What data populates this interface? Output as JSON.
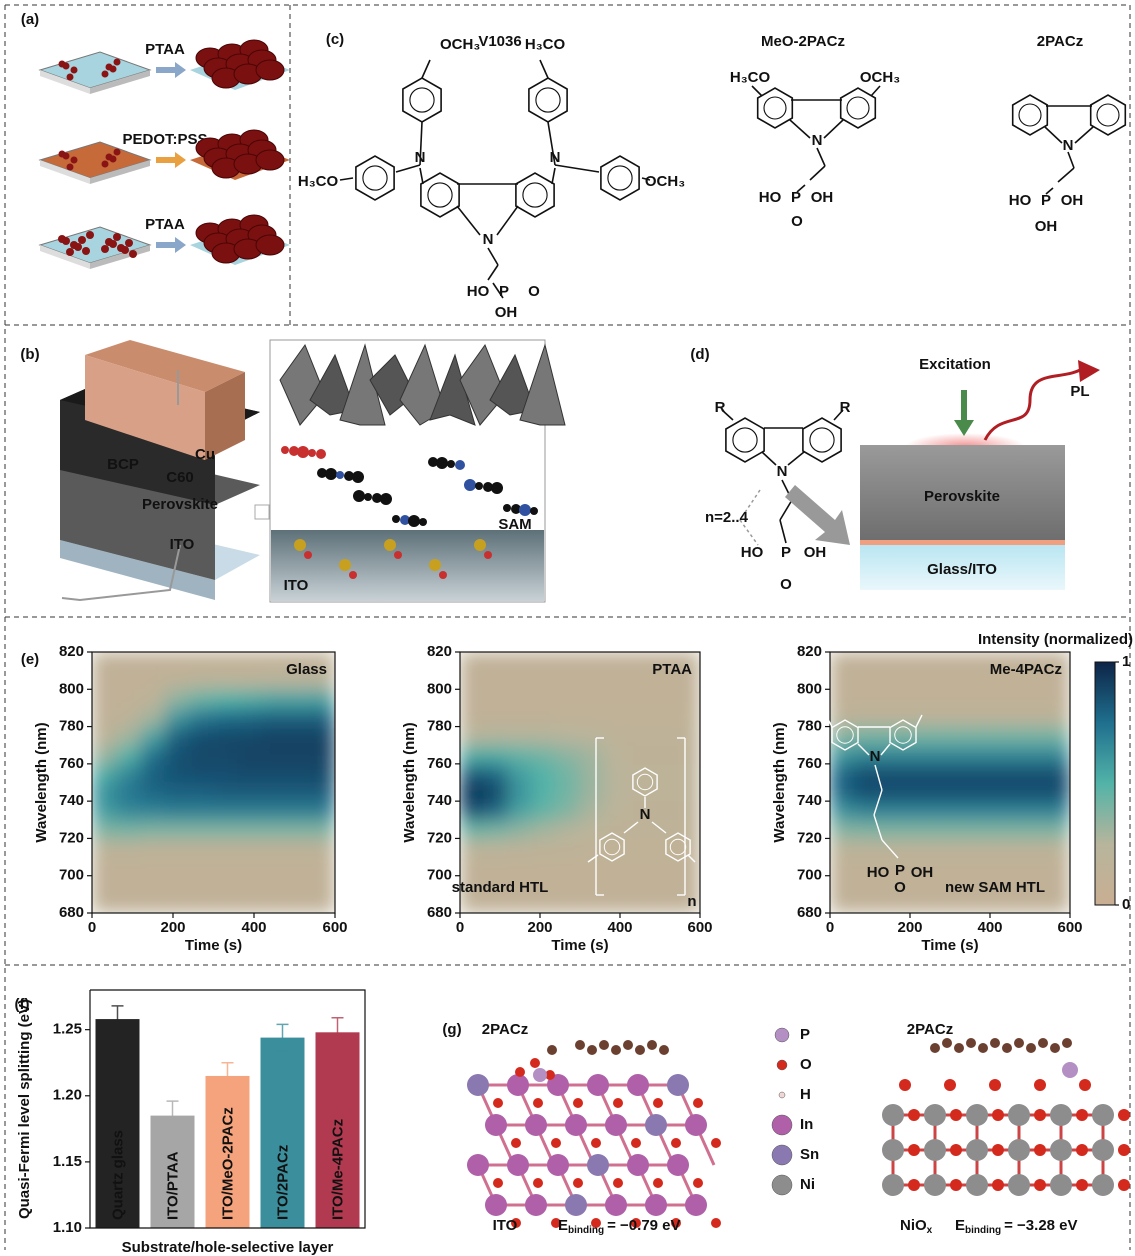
{
  "panels": {
    "a": {
      "label": "(a)",
      "steps": [
        "PTAA",
        "PEDOT:PSS",
        "PTAA"
      ]
    },
    "b": {
      "label": "(b)",
      "device": [
        "Cu",
        "BCP",
        "C60",
        "Perovskite",
        "ITO"
      ],
      "inset": [
        "SAM",
        "ITO"
      ]
    },
    "c": {
      "label": "(c)",
      "molecules": [
        {
          "name": "V1036",
          "atoms": [
            "OCH₃",
            "H₃CO",
            "H₃CO",
            "OCH₃",
            "N",
            "N",
            "N",
            "HO",
            "P",
            "O",
            "OH"
          ]
        },
        {
          "name": "MeO-2PACz",
          "atoms": [
            "H₃CO",
            "OCH₃",
            "N",
            "HO",
            "P",
            "OH",
            "O"
          ]
        },
        {
          "name": "2PACz",
          "atoms": [
            "N",
            "HO",
            "P",
            "OH",
            "OH"
          ]
        }
      ]
    },
    "d": {
      "label": "(d)",
      "atoms": [
        "R",
        "R",
        "N",
        "HO",
        "P",
        "OH",
        "O"
      ],
      "chain": "n=2..4",
      "excitation": "Excitation",
      "emission": "PL",
      "layers": [
        "Perovskite",
        "Glass/ITO"
      ]
    },
    "e": {
      "label": "(e)"
    },
    "f": {
      "label": "(f)"
    },
    "g": {
      "label": "(g)",
      "structures": [
        {
          "molecule": "2PACz",
          "substrate": "ITO",
          "energy_symbol": "E",
          "energy_sub": "binding",
          "energy_value": "= −0.79 eV"
        },
        {
          "molecule": "2PACz",
          "substrate": "NiO",
          "substrate_sub": "x",
          "energy_symbol": "E",
          "energy_sub": "binding",
          "energy_value": "= −3.28 eV"
        }
      ],
      "legend": [
        {
          "name": "P",
          "color": "#b48fc4"
        },
        {
          "name": "O",
          "color": "#d42a1e"
        },
        {
          "name": "H",
          "color": "#f2d6d6"
        },
        {
          "name": "In",
          "color": "#b060a8"
        },
        {
          "name": "Sn",
          "color": "#8a78b0"
        },
        {
          "name": "Ni",
          "color": "#8d8d8d"
        }
      ]
    }
  },
  "chart_data": [
    {
      "type": "heatmap",
      "title": "Glass",
      "xlabel": "Time (s)",
      "ylabel": "Wavelength (nm)",
      "xlim": [
        0,
        600
      ],
      "ylim": [
        680,
        820
      ],
      "xticks": [
        0,
        200,
        400,
        600
      ],
      "yticks": [
        680,
        700,
        720,
        740,
        760,
        780,
        800,
        820
      ],
      "x_bins": [
        0,
        60,
        120,
        180,
        240,
        300,
        360,
        420,
        480,
        540,
        600
      ],
      "y_bins": [
        680,
        690,
        700,
        710,
        720,
        730,
        740,
        750,
        760,
        770,
        780,
        790,
        800,
        810,
        820
      ],
      "colorscale": [
        "#c9ae92",
        "#b7b59c",
        "#52b3a8",
        "#1f6f8e",
        "#0d2447"
      ],
      "values": [
        [
          0.12,
          0.12,
          0.12,
          0.18,
          0.4,
          0.58,
          0.62,
          0.52,
          0.32,
          0.16,
          0.12,
          0.12,
          0.12,
          0.12
        ],
        [
          0.12,
          0.12,
          0.12,
          0.18,
          0.42,
          0.66,
          0.72,
          0.66,
          0.5,
          0.3,
          0.15,
          0.12,
          0.12,
          0.12
        ],
        [
          0.12,
          0.12,
          0.12,
          0.16,
          0.4,
          0.68,
          0.78,
          0.8,
          0.74,
          0.55,
          0.3,
          0.15,
          0.12,
          0.12
        ],
        [
          0.12,
          0.12,
          0.12,
          0.16,
          0.4,
          0.7,
          0.8,
          0.85,
          0.85,
          0.8,
          0.6,
          0.35,
          0.15,
          0.12
        ],
        [
          0.12,
          0.12,
          0.12,
          0.16,
          0.4,
          0.7,
          0.8,
          0.86,
          0.88,
          0.86,
          0.72,
          0.45,
          0.18,
          0.12
        ],
        [
          0.12,
          0.12,
          0.12,
          0.16,
          0.4,
          0.7,
          0.82,
          0.86,
          0.88,
          0.88,
          0.76,
          0.5,
          0.2,
          0.12
        ],
        [
          0.12,
          0.12,
          0.12,
          0.16,
          0.4,
          0.7,
          0.82,
          0.87,
          0.9,
          0.88,
          0.78,
          0.52,
          0.2,
          0.12
        ],
        [
          0.12,
          0.12,
          0.12,
          0.16,
          0.4,
          0.7,
          0.82,
          0.87,
          0.9,
          0.9,
          0.8,
          0.55,
          0.22,
          0.12
        ],
        [
          0.12,
          0.12,
          0.12,
          0.16,
          0.4,
          0.7,
          0.82,
          0.87,
          0.9,
          0.9,
          0.8,
          0.55,
          0.22,
          0.12
        ],
        [
          0.12,
          0.12,
          0.12,
          0.16,
          0.4,
          0.7,
          0.82,
          0.88,
          0.9,
          0.9,
          0.8,
          0.56,
          0.22,
          0.12
        ]
      ]
    },
    {
      "type": "heatmap",
      "title": "PTAA",
      "xlabel": "Time (s)",
      "ylabel": "Wavelength (nm)",
      "xlim": [
        0,
        600
      ],
      "ylim": [
        680,
        820
      ],
      "xticks": [
        0,
        200,
        400,
        600
      ],
      "yticks": [
        680,
        700,
        720,
        740,
        760,
        780,
        800,
        820
      ],
      "x_bins": [
        0,
        60,
        120,
        180,
        240,
        300,
        360,
        420,
        480,
        540,
        600
      ],
      "y_bins": [
        680,
        690,
        700,
        710,
        720,
        730,
        740,
        750,
        760,
        770,
        780,
        790,
        800,
        810,
        820
      ],
      "colorscale": [
        "#c9ae92",
        "#b7b59c",
        "#52b3a8",
        "#1f6f8e",
        "#0d2447"
      ],
      "inset_texts": [
        "N",
        "standard HTL",
        "n"
      ],
      "values": [
        [
          0.12,
          0.12,
          0.12,
          0.2,
          0.45,
          0.85,
          0.95,
          0.82,
          0.52,
          0.25,
          0.12,
          0.12,
          0.12,
          0.12
        ],
        [
          0.12,
          0.12,
          0.12,
          0.2,
          0.42,
          0.78,
          0.88,
          0.78,
          0.52,
          0.26,
          0.12,
          0.12,
          0.12,
          0.12
        ],
        [
          0.12,
          0.12,
          0.12,
          0.18,
          0.36,
          0.56,
          0.62,
          0.58,
          0.46,
          0.26,
          0.12,
          0.12,
          0.12,
          0.12
        ],
        [
          0.12,
          0.12,
          0.12,
          0.16,
          0.3,
          0.46,
          0.5,
          0.5,
          0.42,
          0.26,
          0.12,
          0.12,
          0.12,
          0.12
        ],
        [
          0.12,
          0.12,
          0.12,
          0.15,
          0.26,
          0.38,
          0.42,
          0.42,
          0.36,
          0.24,
          0.13,
          0.12,
          0.12,
          0.12
        ],
        [
          0.12,
          0.12,
          0.12,
          0.14,
          0.2,
          0.28,
          0.32,
          0.32,
          0.3,
          0.22,
          0.13,
          0.12,
          0.12,
          0.12
        ],
        [
          0.12,
          0.12,
          0.12,
          0.13,
          0.16,
          0.2,
          0.22,
          0.22,
          0.2,
          0.17,
          0.13,
          0.12,
          0.12,
          0.12
        ],
        [
          0.12,
          0.12,
          0.12,
          0.13,
          0.15,
          0.16,
          0.17,
          0.17,
          0.16,
          0.15,
          0.13,
          0.12,
          0.12,
          0.12
        ],
        [
          0.12,
          0.12,
          0.12,
          0.13,
          0.15,
          0.16,
          0.17,
          0.17,
          0.16,
          0.15,
          0.13,
          0.12,
          0.12,
          0.12
        ],
        [
          0.12,
          0.12,
          0.12,
          0.13,
          0.15,
          0.16,
          0.17,
          0.17,
          0.16,
          0.15,
          0.13,
          0.12,
          0.12,
          0.12
        ]
      ]
    },
    {
      "type": "heatmap",
      "title": "Me-4PACz",
      "xlabel": "Time (s)",
      "ylabel": "Wavelength (nm)",
      "xlim": [
        0,
        600
      ],
      "ylim": [
        680,
        820
      ],
      "xticks": [
        0,
        200,
        400,
        600
      ],
      "yticks": [
        680,
        700,
        720,
        740,
        760,
        780,
        800,
        820
      ],
      "x_bins": [
        0,
        60,
        120,
        180,
        240,
        300,
        360,
        420,
        480,
        540,
        600
      ],
      "y_bins": [
        680,
        690,
        700,
        710,
        720,
        730,
        740,
        750,
        760,
        770,
        780,
        790,
        800,
        810,
        820
      ],
      "colorscale": [
        "#c9ae92",
        "#b7b59c",
        "#52b3a8",
        "#1f6f8e",
        "#0d2447"
      ],
      "inset_texts": [
        "N",
        "HO",
        "P",
        "OH",
        "O",
        "new SAM HTL"
      ],
      "colorbar": {
        "label": "Intensity (normalized)",
        "ticks": [
          0,
          1
        ]
      },
      "values": [
        [
          0.12,
          0.12,
          0.12,
          0.18,
          0.38,
          0.62,
          0.78,
          0.78,
          0.6,
          0.38,
          0.16,
          0.12,
          0.12,
          0.12
        ],
        [
          0.12,
          0.12,
          0.12,
          0.18,
          0.4,
          0.68,
          0.86,
          0.86,
          0.66,
          0.42,
          0.18,
          0.12,
          0.12,
          0.12
        ],
        [
          0.12,
          0.12,
          0.12,
          0.18,
          0.4,
          0.68,
          0.86,
          0.86,
          0.66,
          0.42,
          0.18,
          0.12,
          0.12,
          0.12
        ],
        [
          0.12,
          0.12,
          0.12,
          0.18,
          0.4,
          0.68,
          0.86,
          0.86,
          0.66,
          0.42,
          0.18,
          0.12,
          0.12,
          0.12
        ],
        [
          0.12,
          0.12,
          0.12,
          0.18,
          0.4,
          0.68,
          0.86,
          0.86,
          0.66,
          0.42,
          0.18,
          0.12,
          0.12,
          0.12
        ],
        [
          0.12,
          0.12,
          0.12,
          0.18,
          0.4,
          0.68,
          0.86,
          0.86,
          0.66,
          0.42,
          0.18,
          0.12,
          0.12,
          0.12
        ],
        [
          0.12,
          0.12,
          0.12,
          0.18,
          0.4,
          0.68,
          0.86,
          0.86,
          0.66,
          0.42,
          0.18,
          0.12,
          0.12,
          0.12
        ],
        [
          0.12,
          0.12,
          0.12,
          0.18,
          0.4,
          0.68,
          0.86,
          0.86,
          0.66,
          0.42,
          0.18,
          0.12,
          0.12,
          0.12
        ],
        [
          0.12,
          0.12,
          0.12,
          0.18,
          0.4,
          0.68,
          0.86,
          0.86,
          0.66,
          0.42,
          0.18,
          0.12,
          0.12,
          0.12
        ],
        [
          0.12,
          0.12,
          0.12,
          0.18,
          0.4,
          0.68,
          0.86,
          0.86,
          0.66,
          0.42,
          0.18,
          0.12,
          0.12,
          0.12
        ]
      ]
    },
    {
      "type": "bar",
      "xlabel": "Substrate/hole-selective layer",
      "ylabel": "Quasi-Fermi level splitting (eV)",
      "categories": [
        "Quartz glass",
        "ITO/PTAA",
        "ITO/MeO-2PACz",
        "ITO/2PACz",
        "ITO/Me-4PACz"
      ],
      "values": [
        1.258,
        1.185,
        1.215,
        1.244,
        1.248
      ],
      "errors": [
        0.01,
        0.011,
        0.01,
        0.01,
        0.011
      ],
      "colors": [
        "#232323",
        "#a6a6a6",
        "#f5a37c",
        "#3b8f9c",
        "#b23a50"
      ],
      "ylim": [
        1.1,
        1.28
      ],
      "yticks": [
        {
          "value": 1.1,
          "label": "1.10"
        },
        1.15,
        {
          "value": 1.2,
          "label": "1.20"
        },
        1.25
      ]
    }
  ]
}
